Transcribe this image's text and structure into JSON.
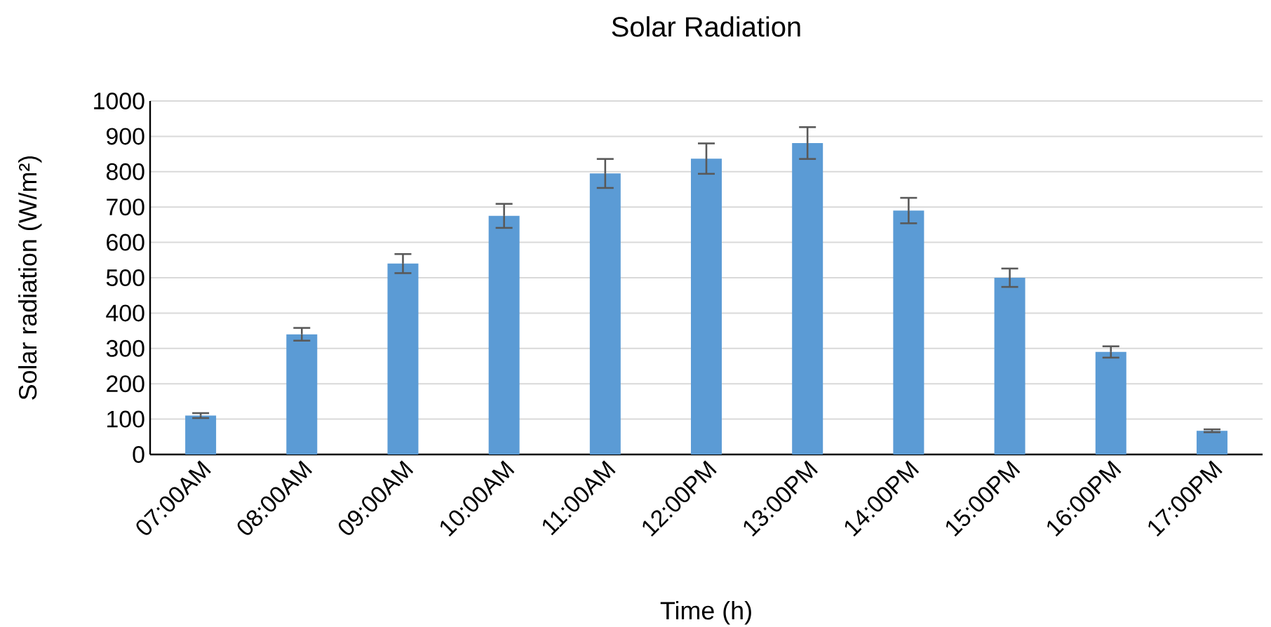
{
  "chart_data": {
    "type": "bar",
    "title": "Solar Radiation",
    "xlabel": "Time (h)",
    "ylabel": "Solar radiation (W/m²)",
    "categories": [
      "07:00AM",
      "08:00AM",
      "09:00AM",
      "10:00AM",
      "11:00AM",
      "12:00PM",
      "13:00PM",
      "14:00PM",
      "15:00PM",
      "16:00PM",
      "17:00PM"
    ],
    "values": [
      110,
      340,
      540,
      675,
      795,
      837,
      881,
      690,
      500,
      290,
      67
    ],
    "errors": [
      7,
      18,
      27,
      34,
      41,
      43,
      45,
      36,
      26,
      16,
      4
    ],
    "color": "#5b9bd5",
    "ylim": [
      0,
      1000
    ],
    "yticks": [
      0,
      100,
      200,
      300,
      400,
      500,
      600,
      700,
      800,
      900,
      1000
    ],
    "grid": "y"
  }
}
